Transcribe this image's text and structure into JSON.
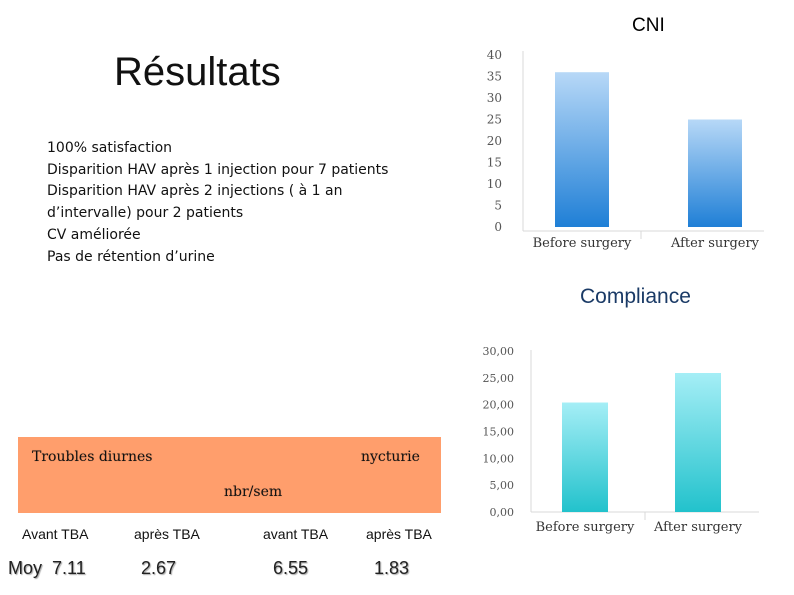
{
  "slide": {
    "title": "Résultats",
    "bullets": [
      "100% satisfaction",
      "Disparition HAV après 1 injection pour 7 patients",
      "Disparition HAV après 2 injections ( à 1 an",
      "d’intervalle) pour 2 patients",
      "CV améliorée",
      "Pas de rétention d’urine"
    ]
  },
  "charts": {
    "cni_label": "CNI",
    "compliance_label": "Compliance"
  },
  "chart_data": [
    {
      "type": "bar",
      "title": "",
      "categories": [
        "Before surgery",
        "After surgery"
      ],
      "values": [
        36,
        25
      ],
      "ylim": [
        0,
        40
      ],
      "yticks": [
        "0",
        "5",
        "10",
        "15",
        "20",
        "25",
        "30",
        "35",
        "40"
      ],
      "grid": false,
      "color": "#2a87d8"
    },
    {
      "type": "bar",
      "title": "",
      "categories": [
        "Before surgery",
        "After surgery"
      ],
      "values": [
        20.4,
        25.9
      ],
      "ylim": [
        0,
        30
      ],
      "yticks": [
        "0,00",
        "5,00",
        "10,00",
        "15,00",
        "20,00",
        "25,00",
        "30,00"
      ],
      "grid": false,
      "color": "#2ec8d2"
    }
  ],
  "table": {
    "header_left": "Troubles diurnes",
    "header_right": "nycturie",
    "unit": "nbr/sem",
    "labels": [
      "Avant TBA",
      "après TBA",
      "avant TBA",
      "après TBA"
    ],
    "values": [
      "Moy  7.11",
      "2.67",
      "6.55",
      "1.83"
    ],
    "box_color": "#ff9e6c"
  }
}
